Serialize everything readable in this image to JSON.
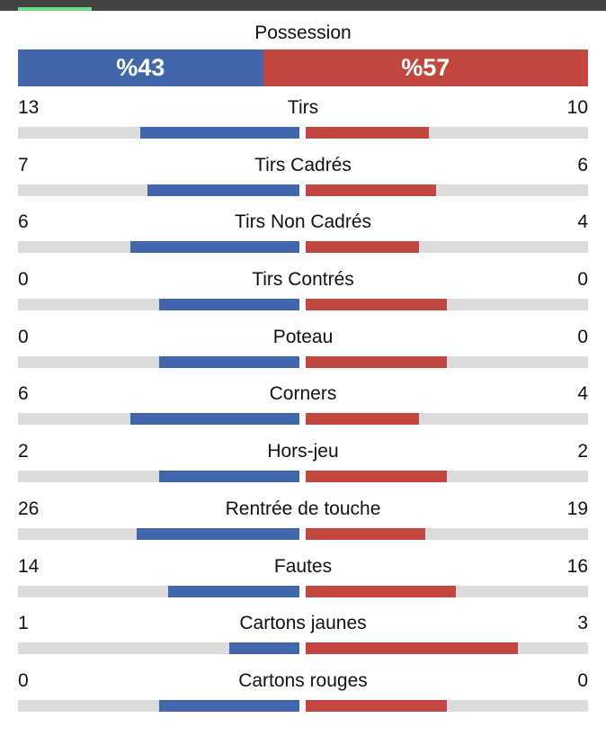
{
  "header": {
    "tab_indicator_color": "#6fdc8c"
  },
  "possession": {
    "title": "Possession",
    "home": "%43",
    "away": "%57",
    "home_pct": 43,
    "away_pct": 57
  },
  "colors": {
    "home": "#4266ab",
    "away": "#c24741",
    "track": "#dcdcdc"
  },
  "stats": [
    {
      "label": "Tirs",
      "home": "13",
      "away": "10"
    },
    {
      "label": "Tirs Cadrés",
      "home": "7",
      "away": "6"
    },
    {
      "label": "Tirs Non Cadrés",
      "home": "6",
      "away": "4"
    },
    {
      "label": "Tirs Contrés",
      "home": "0",
      "away": "0"
    },
    {
      "label": "Poteau",
      "home": "0",
      "away": "0"
    },
    {
      "label": "Corners",
      "home": "6",
      "away": "4"
    },
    {
      "label": "Hors-jeu",
      "home": "2",
      "away": "2"
    },
    {
      "label": "Rentrée de touche",
      "home": "26",
      "away": "19"
    },
    {
      "label": "Fautes",
      "home": "14",
      "away": "16"
    },
    {
      "label": "Cartons jaunes",
      "home": "1",
      "away": "3"
    },
    {
      "label": "Cartons rouges",
      "home": "0",
      "away": "0"
    }
  ]
}
